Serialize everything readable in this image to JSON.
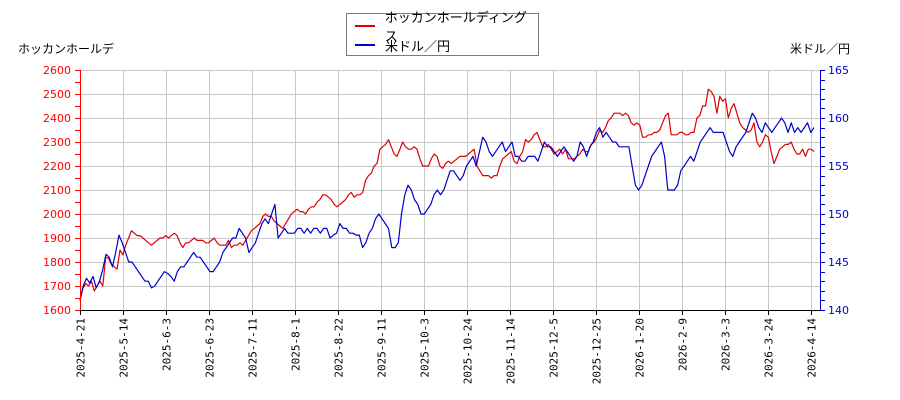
{
  "chart_data": {
    "type": "line",
    "title": "",
    "legend_position": "top-center",
    "grid": true,
    "left_axis": {
      "label": "ホッカンホールデ",
      "range": [
        1600,
        2600
      ],
      "ticks": [
        1600,
        1700,
        1800,
        1900,
        2000,
        2100,
        2200,
        2300,
        2400,
        2500,
        2600
      ],
      "color": "#ff0000"
    },
    "right_axis": {
      "label": "米ドル／円",
      "range": [
        140,
        165
      ],
      "ticks": [
        140,
        145,
        150,
        155,
        160,
        165
      ],
      "color": "#0000cc"
    },
    "x_ticks": [
      "2025-4-21",
      "2025-5-14",
      "2025-6-3",
      "2025-6-23",
      "2025-7-11",
      "2025-8-1",
      "2025-8-22",
      "2025-9-11",
      "2025-10-3",
      "2025-10-24",
      "2025-11-14",
      "2025-12-5",
      "2025-12-25",
      "2026-1-20",
      "2026-2-9",
      "2026-3-3",
      "2026-3-24",
      "2026-4-14"
    ],
    "series": [
      {
        "name": "ホッカンホールディングス",
        "axis": "left",
        "color": "#dd0000",
        "values": [
          1640,
          1690,
          1710,
          1700,
          1720,
          1680,
          1700,
          1720,
          1700,
          1820,
          1815,
          1790,
          1780,
          1770,
          1850,
          1830,
          1870,
          1900,
          1930,
          1920,
          1910,
          1910,
          1900,
          1890,
          1880,
          1870,
          1880,
          1890,
          1900,
          1900,
          1910,
          1900,
          1910,
          1920,
          1910,
          1880,
          1860,
          1880,
          1880,
          1890,
          1900,
          1890,
          1890,
          1890,
          1880,
          1880,
          1890,
          1900,
          1880,
          1870,
          1870,
          1870,
          1890,
          1860,
          1870,
          1870,
          1880,
          1870,
          1890,
          1910,
          1930,
          1940,
          1950,
          1960,
          1990,
          2000,
          1990,
          1990,
          1970,
          1960,
          1950,
          1940,
          1960,
          1980,
          2000,
          2010,
          2020,
          2010,
          2010,
          2000,
          2020,
          2030,
          2030,
          2050,
          2060,
          2080,
          2080,
          2070,
          2060,
          2040,
          2030,
          2040,
          2050,
          2060,
          2080,
          2090,
          2070,
          2080,
          2080,
          2090,
          2140,
          2160,
          2170,
          2200,
          2210,
          2270,
          2280,
          2290,
          2310,
          2280,
          2250,
          2240,
          2270,
          2300,
          2280,
          2270,
          2270,
          2280,
          2270,
          2230,
          2200,
          2200,
          2200,
          2230,
          2250,
          2240,
          2200,
          2190,
          2210,
          2220,
          2210,
          2220,
          2230,
          2240,
          2240,
          2240,
          2250,
          2260,
          2270,
          2200,
          2180,
          2160,
          2160,
          2160,
          2150,
          2160,
          2160,
          2200,
          2230,
          2240,
          2250,
          2260,
          2220,
          2210,
          2240,
          2260,
          2310,
          2300,
          2310,
          2330,
          2340,
          2310,
          2280,
          2280,
          2290,
          2270,
          2250,
          2260,
          2270,
          2250,
          2270,
          2230,
          2230,
          2230,
          2240,
          2250,
          2270,
          2260,
          2260,
          2290,
          2300,
          2320,
          2350,
          2340,
          2360,
          2390,
          2400,
          2420,
          2420,
          2420,
          2410,
          2420,
          2410,
          2380,
          2370,
          2380,
          2370,
          2320,
          2320,
          2330,
          2330,
          2340,
          2340,
          2350,
          2380,
          2410,
          2420,
          2330,
          2330,
          2330,
          2340,
          2340,
          2330,
          2330,
          2340,
          2340,
          2400,
          2410,
          2450,
          2450,
          2520,
          2510,
          2490,
          2420,
          2490,
          2470,
          2480,
          2400,
          2440,
          2460,
          2420,
          2380,
          2360,
          2350,
          2340,
          2350,
          2380,
          2300,
          2280,
          2300,
          2330,
          2320,
          2260,
          2210,
          2240,
          2270,
          2280,
          2290,
          2290,
          2300,
          2270,
          2250,
          2250,
          2270,
          2240,
          2270,
          2270,
          2260
        ]
      },
      {
        "name": "米ドル／円",
        "axis": "right",
        "color": "#0000cc",
        "values": [
          141.0,
          142.5,
          143.3,
          142.8,
          143.5,
          142.3,
          143.0,
          144.2,
          145.8,
          145.5,
          144.5,
          146.0,
          147.8,
          147.0,
          146.0,
          145.0,
          145.0,
          144.5,
          144.0,
          143.5,
          143.0,
          143.0,
          142.3,
          142.5,
          143.0,
          143.5,
          144.0,
          143.8,
          143.5,
          143.0,
          144.0,
          144.5,
          144.5,
          145.0,
          145.5,
          146.0,
          145.5,
          145.5,
          145.0,
          144.5,
          144.0,
          144.0,
          144.5,
          145.0,
          146.0,
          146.5,
          147.0,
          147.5,
          147.5,
          148.5,
          148.0,
          147.5,
          146.0,
          146.5,
          147.0,
          148.0,
          149.0,
          149.5,
          149.0,
          150.0,
          151.0,
          147.5,
          148.0,
          148.5,
          148.0,
          148.0,
          148.0,
          148.5,
          148.5,
          148.0,
          148.5,
          148.0,
          148.5,
          148.5,
          148.0,
          148.5,
          148.5,
          147.5,
          147.8,
          148.0,
          149.0,
          148.5,
          148.5,
          148.0,
          148.0,
          147.8,
          147.8,
          146.5,
          147.0,
          148.0,
          148.5,
          149.5,
          150.0,
          149.5,
          149.0,
          148.5,
          146.5,
          146.5,
          147.0,
          150.0,
          152.0,
          153.0,
          152.5,
          151.5,
          151.0,
          150.0,
          150.0,
          150.5,
          151.0,
          152.0,
          152.5,
          152.0,
          152.5,
          153.5,
          154.5,
          154.5,
          154.0,
          153.5,
          154.0,
          155.0,
          155.5,
          156.0,
          155.0,
          156.5,
          158.0,
          157.5,
          156.5,
          156.0,
          156.5,
          157.0,
          157.5,
          156.5,
          157.0,
          157.5,
          156.0,
          156.0,
          155.5,
          155.5,
          156.0,
          156.0,
          156.0,
          155.5,
          156.5,
          157.5,
          157.0,
          157.0,
          156.5,
          156.0,
          156.5,
          157.0,
          156.5,
          156.0,
          155.5,
          156.0,
          157.5,
          157.0,
          156.0,
          157.0,
          157.5,
          158.5,
          159.0,
          158.0,
          158.5,
          158.0,
          157.5,
          157.5,
          157.0,
          157.0,
          157.0,
          157.0,
          155.0,
          153.0,
          152.5,
          153.0,
          154.0,
          155.0,
          156.0,
          156.5,
          157.0,
          157.5,
          156.0,
          152.5,
          152.5,
          152.5,
          153.0,
          154.5,
          155.0,
          155.5,
          156.0,
          155.5,
          156.5,
          157.5,
          158.0,
          158.5,
          159.0,
          158.5,
          158.5,
          158.5,
          158.5,
          157.5,
          156.5,
          156.0,
          157.0,
          157.5,
          158.0,
          158.5,
          159.5,
          160.5,
          160.0,
          159.0,
          158.5,
          159.5,
          159.0,
          158.5,
          159.0,
          159.5,
          160.0,
          159.5,
          158.5,
          159.5,
          158.5,
          159.0,
          158.5,
          159.0,
          159.5,
          158.5,
          159.0
        ]
      }
    ]
  },
  "legend": {
    "items": [
      {
        "label": "ホッカンホールディングス",
        "color": "#dd0000"
      },
      {
        "label": "米ドル／円",
        "color": "#0000cc"
      }
    ]
  },
  "axes": {
    "left_title": "ホッカンホールデ",
    "right_title": "米ドル／円"
  }
}
